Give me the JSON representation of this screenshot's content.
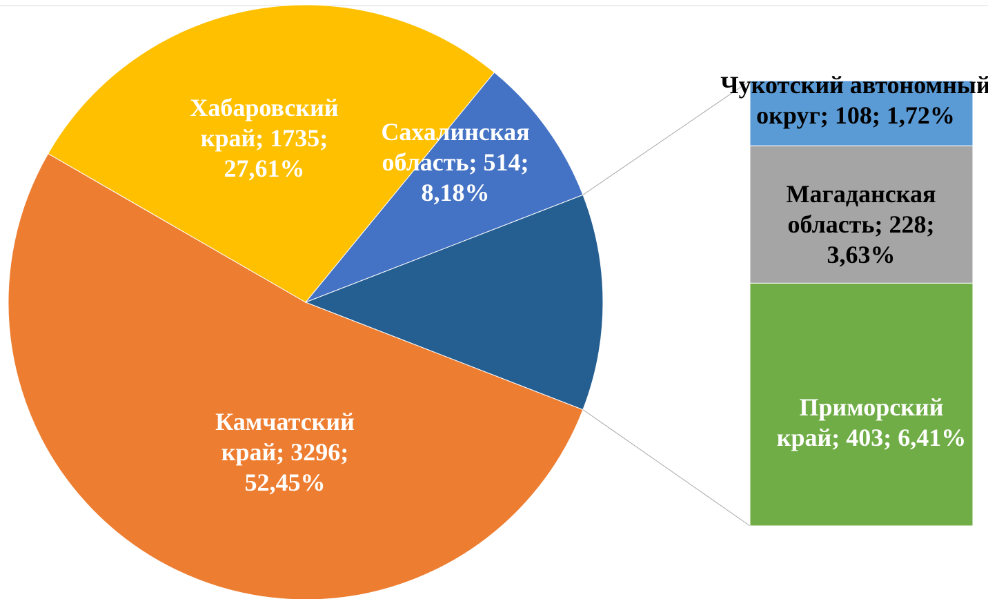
{
  "chart_data": {
    "type": "pie_of_bar",
    "pie": {
      "categories": [
        "Камчатский край",
        "Хабаровский край",
        "Сахалинская область"
      ],
      "values": [
        3296,
        1735,
        514
      ],
      "percents": [
        52.45,
        27.61,
        8.18
      ],
      "percent_labels": [
        "52,45%",
        "27,61%",
        "8,18%"
      ],
      "colors": [
        "#ED7D31",
        "#FFC000",
        "#4472C4"
      ],
      "label_colors": [
        "#FFFFFF",
        "#FFFFFF",
        "#FFFFFF"
      ],
      "other_color": "#255E91"
    },
    "bar": {
      "categories": [
        "Приморский край",
        "Магаданская область",
        "Чукотский автономный округ"
      ],
      "values": [
        403,
        228,
        108
      ],
      "percents": [
        6.41,
        3.63,
        1.72
      ],
      "percent_labels": [
        "6,41%",
        "3,63%",
        "1,72%"
      ],
      "colors": [
        "#70AD47",
        "#A5A5A5",
        "#5B9BD5"
      ],
      "label_colors": [
        "#FFFFFF",
        "#000000",
        "#000000"
      ]
    }
  }
}
